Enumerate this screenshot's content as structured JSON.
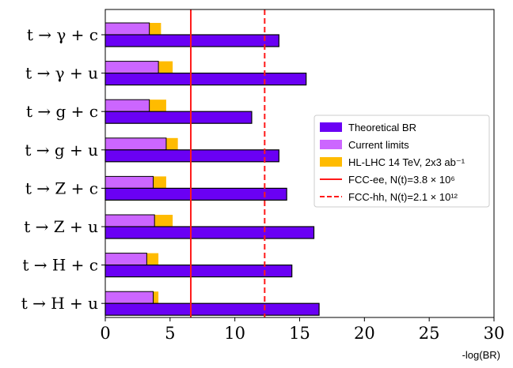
{
  "chart_data": {
    "type": "bar",
    "orientation": "horizontal",
    "categories": [
      "t → γ + c",
      "t → γ + u",
      "t → g + c",
      "t → g + u",
      "t → Z + c",
      "t → Z + u",
      "t → H + c",
      "t → H + u"
    ],
    "series": [
      {
        "name": "Theoretical BR",
        "color": "#6a00f4",
        "values": [
          13.4,
          15.5,
          11.3,
          13.4,
          14.0,
          16.1,
          14.4,
          16.5
        ]
      },
      {
        "name": "Current limits",
        "color": "#cc66ff",
        "values": [
          3.4,
          4.1,
          3.4,
          4.7,
          3.7,
          3.8,
          3.2,
          3.7
        ]
      },
      {
        "name": "HL-LHC 14 TeV, 2x3 ab⁻¹",
        "color": "#ffbb00",
        "values": [
          4.3,
          5.2,
          4.7,
          5.6,
          4.7,
          5.2,
          4.1,
          4.1
        ]
      }
    ],
    "reference_lines": [
      {
        "name": "FCC-ee, N(t)=3.8 × 10⁶",
        "value": 6.6,
        "style": "solid",
        "color": "#ff1a1a"
      },
      {
        "name": "FCC-hh, N(t)=2.1 × 10¹²",
        "value": 12.3,
        "style": "dashed",
        "color": "#ff1a1a"
      }
    ],
    "xlabel": "-log(BR)",
    "xlim": [
      0,
      30
    ],
    "xticks": [
      0,
      5,
      10,
      15,
      20,
      25,
      30
    ],
    "legend_position": "center-right"
  }
}
